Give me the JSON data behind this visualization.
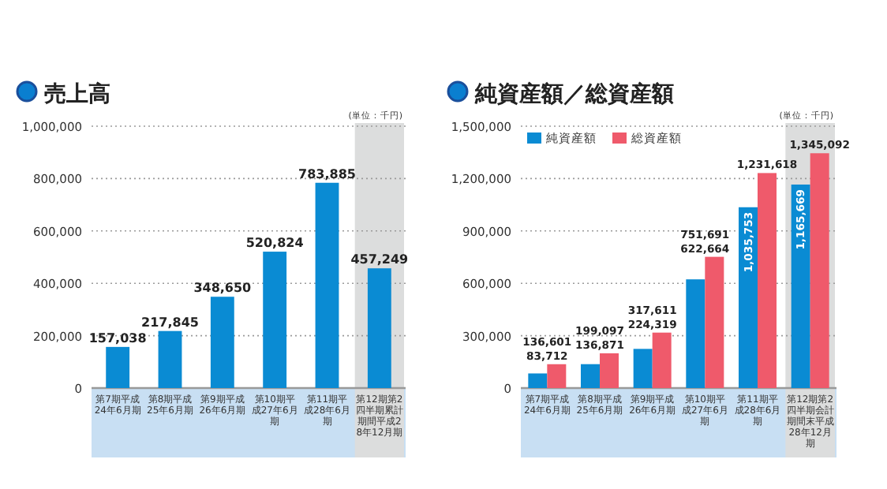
{
  "chart_data": [
    {
      "type": "bar",
      "title": "売上高",
      "annotations": [
        "(単位：千円)"
      ],
      "categories": [
        "第7期平成24年6月期",
        "第8期平成25年6月期",
        "第9期平成26年6月期",
        "第10期平成27年6月期",
        "第11期平成28年6月期",
        "第12期第2四半期累計期間平成28年12月期"
      ],
      "series": [
        {
          "color": "#0a8bd3",
          "values": [
            157038,
            217845,
            348650,
            520824,
            783885,
            457249
          ],
          "value_labels": [
            "157,038",
            "217,845",
            "348,650",
            "520,824",
            "783,885",
            "457,249"
          ]
        }
      ],
      "ylim": [
        0,
        1000000
      ],
      "yticks": [
        {
          "value": 0,
          "label": "0"
        },
        {
          "value": 200000,
          "label": "200,000"
        },
        {
          "value": 400000,
          "label": "400,000"
        },
        {
          "value": 600000,
          "label": "600,000"
        },
        {
          "value": 800000,
          "label": "800,000"
        },
        {
          "value": 1000000,
          "label": "1,000,000"
        }
      ],
      "grid": "y",
      "bands": [
        {
          "axis": "x",
          "from": "第12期第2四半期累計期間平成28年12月期",
          "to": "第12期第2四半期累計期間平成28年12月期",
          "color": "#dcdddd"
        }
      ]
    },
    {
      "type": "bar",
      "title": "純資産額／総資産額",
      "annotations": [
        "(単位：千円)"
      ],
      "categories": [
        "第7期平成24年6月期",
        "第8期平成25年6月期",
        "第9期平成26年6月期",
        "第10期平成27年6月期",
        "第11期平成28年6月期",
        "第12期第2四半期会計期間末平成28年12月期"
      ],
      "series": [
        {
          "name": "純資産額",
          "color": "#0a8bd3",
          "values": [
            83712,
            136871,
            224319,
            622664,
            1035753,
            1165669
          ],
          "value_labels": [
            "83,712",
            "136,871",
            "224,319",
            "622,664",
            "1,035,753",
            "1,165,669"
          ]
        },
        {
          "name": "総資産額",
          "color": "#ef5a6b",
          "values": [
            136601,
            199097,
            317611,
            751691,
            1231618,
            1345092
          ],
          "value_labels": [
            "136,601",
            "199,097",
            "317,611",
            "751,691",
            "1,231,618",
            "1,345,092"
          ]
        }
      ],
      "ylim": [
        0,
        1500000
      ],
      "yticks": [
        {
          "value": 0,
          "label": "0"
        },
        {
          "value": 300000,
          "label": "300,000"
        },
        {
          "value": 600000,
          "label": "600,000"
        },
        {
          "value": 900000,
          "label": "900,000"
        },
        {
          "value": 1200000,
          "label": "1,200,000"
        },
        {
          "value": 1500000,
          "label": "1,500,000"
        }
      ],
      "grid": "y",
      "legend": "top left",
      "bands": [
        {
          "axis": "x",
          "from": "第12期第2四半期会計期間末平成28年12月期",
          "to": "第12期第2四半期会計期間末平成28年12月期",
          "color": "#dcdddd"
        }
      ]
    }
  ]
}
